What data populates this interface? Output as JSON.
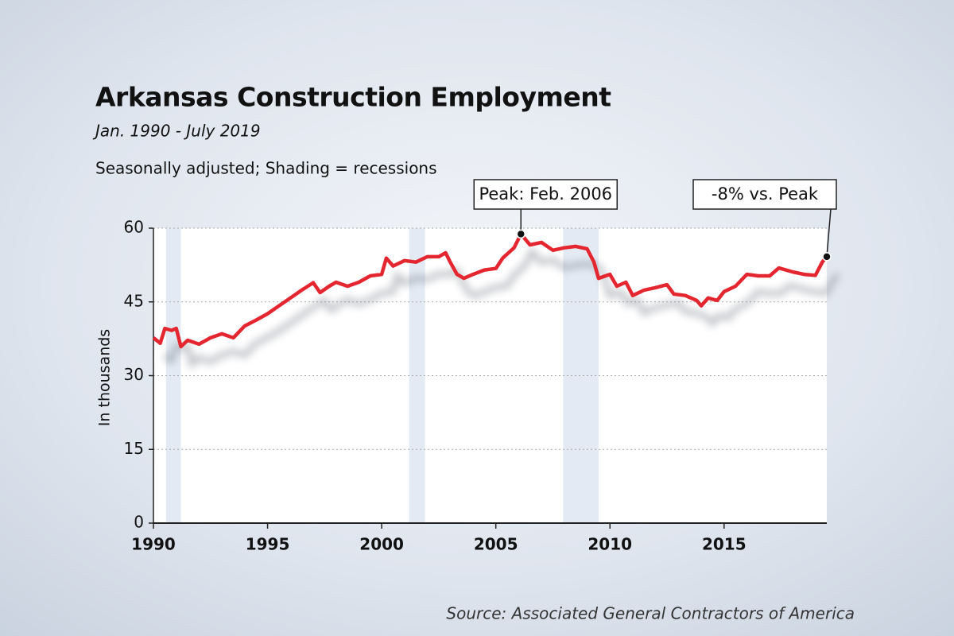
{
  "chart_data": {
    "type": "line",
    "title": "Arkansas Construction Employment",
    "subtitle": "Jan. 1990 - July 2019",
    "note": "Seasonally adjusted; Shading = recessions",
    "ylabel": "In thousands",
    "source": "Source: Associated General Contractors of America",
    "color": "#e3262f",
    "x": [
      1990.0,
      1990.3,
      1990.5,
      1990.8,
      1991.0,
      1991.2,
      1991.5,
      1992.0,
      1992.5,
      1993.0,
      1993.5,
      1994.0,
      1994.5,
      1995.0,
      1995.5,
      1996.0,
      1996.5,
      1997.0,
      1997.3,
      1997.7,
      1998.0,
      1998.5,
      1999.0,
      1999.5,
      2000.0,
      2000.2,
      2000.5,
      2001.0,
      2001.5,
      2002.0,
      2002.5,
      2002.8,
      2003.0,
      2003.3,
      2003.6,
      2004.0,
      2004.5,
      2005.0,
      2005.3,
      2005.8,
      2006.1,
      2006.5,
      2007.0,
      2007.5,
      2008.0,
      2008.5,
      2009.0,
      2009.3,
      2009.5,
      2010.0,
      2010.3,
      2010.7,
      2011.0,
      2011.5,
      2012.0,
      2012.5,
      2012.8,
      2013.3,
      2013.8,
      2014.0,
      2014.3,
      2014.7,
      2015.0,
      2015.5,
      2016.0,
      2016.5,
      2017.0,
      2017.4,
      2018.0,
      2018.5,
      2019.0,
      2019.3,
      2019.5
    ],
    "values": [
      37.7,
      36.6,
      39.6,
      39.2,
      39.6,
      35.9,
      37.2,
      36.4,
      37.7,
      38.5,
      37.7,
      40.1,
      41.3,
      42.6,
      44.2,
      45.8,
      47.4,
      48.9,
      46.9,
      48.2,
      49.0,
      48.2,
      49.0,
      50.3,
      50.6,
      53.9,
      52.3,
      53.4,
      53.1,
      54.2,
      54.2,
      55.0,
      53.1,
      50.6,
      49.8,
      50.6,
      51.5,
      51.8,
      53.9,
      56.0,
      58.8,
      56.6,
      57.1,
      55.5,
      56.0,
      56.3,
      55.8,
      53.1,
      49.8,
      50.6,
      48.2,
      49.0,
      46.3,
      47.4,
      47.9,
      48.5,
      46.6,
      46.3,
      45.3,
      44.2,
      45.8,
      45.3,
      47.1,
      48.2,
      50.6,
      50.3,
      50.3,
      51.9,
      51.1,
      50.6,
      50.4,
      53.1,
      54.2
    ],
    "xlim": [
      1990,
      2019.5
    ],
    "ylim": [
      0,
      60
    ],
    "xticks": [
      1990,
      1995,
      2000,
      2005,
      2010,
      2015
    ],
    "yticks": [
      0,
      15,
      30,
      45,
      60
    ],
    "grid": true,
    "recessions": [
      [
        1990.55,
        1991.2
      ],
      [
        2001.2,
        2001.9
      ],
      [
        2007.95,
        2009.5
      ]
    ],
    "annotations": [
      {
        "text": "Peak: Feb. 2006",
        "x": 2006.1,
        "y": 58.8
      },
      {
        "text": "-8% vs. Peak",
        "x": 2019.5,
        "y": 54.2
      }
    ]
  }
}
